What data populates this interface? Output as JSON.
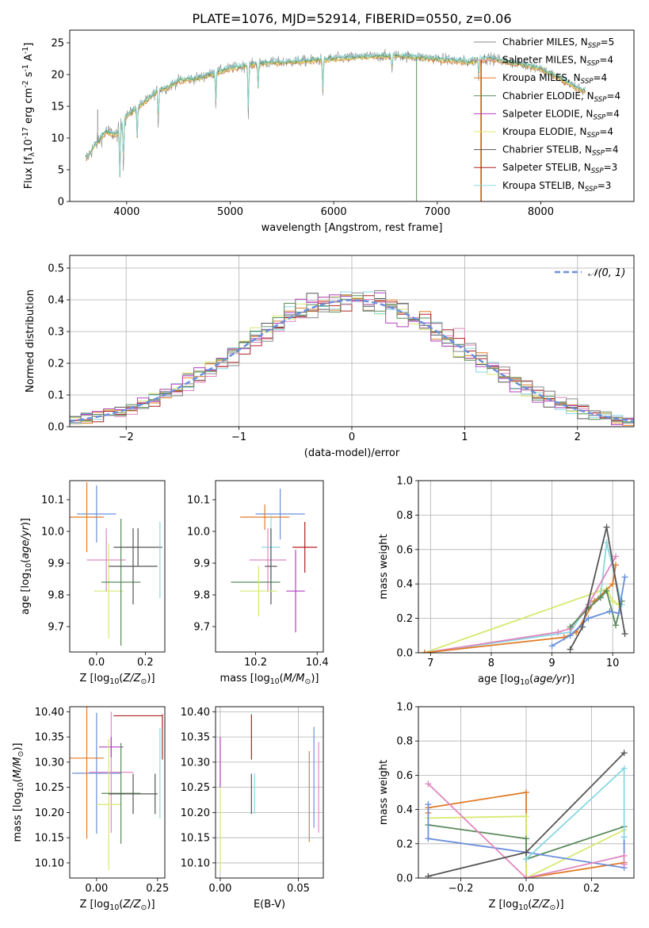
{
  "title": "PLATE=1076, MJD=52914, FIBERID=0550, z=0.06",
  "colors": {
    "c1": "#6a8fdc",
    "c2": "#e087c0",
    "c3": "#e07b28",
    "c4": "#5a8a5a",
    "c5": "#b040c0",
    "c6": "#d8e870",
    "c7": "#555555",
    "c8": "#b02020",
    "c9": "#88d8e0",
    "gray": "#8a8a8a"
  },
  "legend_entries": [
    "Chabrier MILES, N$_{SSP}$=5",
    "Salpeter MILES, N$_{SSP}$=4",
    "Kroupa MILES, N$_{SSP}$=4",
    "Chabrier ELODIE, N$_{SSP}$=4",
    "Salpeter ELODIE, N$_{SSP}$=4",
    "Kroupa ELODIE, N$_{SSP}$=4",
    "Chabrier STELIB, N$_{SSP}$=4",
    "Salpeter STELIB, N$_{SSP}$=3",
    "Kroupa STELIB, N$_{SSP}$=3"
  ],
  "legend_colors": [
    "gray",
    "c2",
    "c3",
    "c4",
    "c5",
    "c6",
    "c7",
    "c8",
    "c9"
  ],
  "chart_data": [
    {
      "id": "spectrum",
      "type": "line",
      "xlabel": "wavelength [Angstrom, rest frame]",
      "ylabel": "Flux [f$_\\lambda$10$^{-17}$ erg cm$^{-2}$ s$^{-1}$ A$^{-1}$]",
      "xlim": [
        3450,
        8900
      ],
      "ylim": [
        0,
        27
      ],
      "xticks": [
        4000,
        5000,
        6000,
        7000,
        8000
      ],
      "yticks": [
        0,
        5,
        10,
        15,
        20,
        25
      ],
      "grid": false,
      "legend": "right",
      "continuum": {
        "x": [
          3600,
          3700,
          3800,
          3900,
          4000,
          4100,
          4200,
          4300,
          4400,
          4500,
          4700,
          5000,
          5300,
          5600,
          6000,
          6300,
          6600,
          7000,
          7300,
          7500,
          8000,
          8400
        ],
        "y": [
          6.5,
          9,
          11,
          10.5,
          13.5,
          14.8,
          16,
          17.5,
          18,
          19,
          19.5,
          21,
          21.8,
          22,
          22.5,
          22.8,
          23,
          22.5,
          22,
          22.6,
          21,
          17.5
        ]
      },
      "dips": [
        {
          "x": 3934,
          "y": 2
        },
        {
          "x": 3969,
          "y": 4
        },
        {
          "x": 4102,
          "y": 9
        },
        {
          "x": 4305,
          "y": 11
        },
        {
          "x": 4861,
          "y": 14
        },
        {
          "x": 5175,
          "y": 12
        },
        {
          "x": 5270,
          "y": 17
        },
        {
          "x": 5895,
          "y": 16
        },
        {
          "x": 6563,
          "y": 20
        },
        {
          "x": 7400,
          "y": 19
        }
      ],
      "spikes": [
        {
          "x": 3720,
          "y": 14.5,
          "color": "gray"
        },
        {
          "x": 6800,
          "y": 0,
          "color": "c4"
        },
        {
          "x": 7425,
          "y": 0,
          "color": "c8"
        },
        {
          "x": 7420,
          "y": 0,
          "color": "c3"
        }
      ]
    },
    {
      "id": "residual_hist",
      "type": "histogram",
      "xlabel": "(data-model)/error",
      "ylabel": "Normed distribution",
      "xlim": [
        -2.5,
        2.5
      ],
      "ylim": [
        0,
        0.54
      ],
      "xticks": [
        -2,
        -1,
        0,
        1,
        2
      ],
      "yticks": [
        0.0,
        0.1,
        0.2,
        0.3,
        0.4,
        0.5
      ],
      "grid": true,
      "bin_width": 0.1,
      "reference": {
        "name": "$\\mathcal{N}(0,1)$",
        "color": "c1",
        "style": "dashed"
      },
      "series_colors": [
        "c7",
        "c3",
        "c2",
        "c6",
        "c9",
        "c8",
        "c5",
        "c4",
        "gray"
      ]
    },
    {
      "id": "age_vs_Z",
      "type": "errorbar",
      "xlabel": "Z [log$_{10}$($Z/Z_\\odot$)]",
      "ylabel": "age  [log$_{10}$($age/yr$)]",
      "xlim": [
        -0.11,
        0.28
      ],
      "ylim": [
        9.62,
        10.16
      ],
      "xticks": [
        0.0,
        0.2
      ],
      "yticks": [
        9.7,
        9.8,
        9.9,
        10.0,
        10.1
      ],
      "grid": false,
      "points": [
        {
          "c": "c1",
          "x": 0.0,
          "y": 10.055,
          "xe": 0.08,
          "ye": 0.09
        },
        {
          "c": "c3",
          "x": -0.04,
          "y": 10.045,
          "xe": 0.07,
          "ye": 0.11
        },
        {
          "c": "c2",
          "x": 0.04,
          "y": 9.91,
          "xe": 0.08,
          "ye": 0.1
        },
        {
          "c": "c6",
          "x": 0.05,
          "y": 9.812,
          "xe": 0.06,
          "ye": 0.15
        },
        {
          "c": "c4",
          "x": 0.1,
          "y": 9.84,
          "xe": 0.08,
          "ye": 0.2
        },
        {
          "c": "c7",
          "x": 0.15,
          "y": 9.89,
          "xe": 0.1,
          "ye": 0.12
        },
        {
          "c": "c5",
          "x": 0.1,
          "y": 9.84,
          "xe": 0.0,
          "ye": 0.0
        },
        {
          "c": "c7",
          "x": 0.17,
          "y": 9.95,
          "xe": 0.1,
          "ye": 0.06
        },
        {
          "c": "c9",
          "x": 0.26,
          "y": 9.91,
          "xe": 0.0,
          "ye": 0.12
        }
      ]
    },
    {
      "id": "age_vs_mass",
      "type": "errorbar",
      "xlabel": "mass [log$_{10}$($M/M_\\odot$)]",
      "ylabel": "",
      "xlim": [
        10.07,
        10.42
      ],
      "ylim": [
        9.62,
        10.16
      ],
      "xticks": [
        10.2,
        10.4
      ],
      "yticks": [
        9.7,
        9.8,
        9.9,
        10.0,
        10.1
      ],
      "grid": false,
      "points": [
        {
          "c": "c1",
          "x": 10.28,
          "y": 10.055,
          "xe": 0.08,
          "ye": 0.08
        },
        {
          "c": "c3",
          "x": 10.23,
          "y": 10.045,
          "xe": 0.08,
          "ye": 0.04
        },
        {
          "c": "c2",
          "x": 10.24,
          "y": 9.91,
          "xe": 0.06,
          "ye": 0.1
        },
        {
          "c": "c9",
          "x": 10.25,
          "y": 9.95,
          "xe": 0.03,
          "ye": 0.1
        },
        {
          "c": "c4",
          "x": 10.2,
          "y": 9.84,
          "xe": 0.08,
          "ye": 0.0
        },
        {
          "c": "c7",
          "x": 10.25,
          "y": 9.89,
          "xe": 0.02,
          "ye": 0.12
        },
        {
          "c": "c6",
          "x": 10.21,
          "y": 9.812,
          "xe": 0.06,
          "ye": 0.08
        },
        {
          "c": "c5",
          "x": 10.33,
          "y": 9.812,
          "xe": 0.03,
          "ye": 0.13
        },
        {
          "c": "c8",
          "x": 10.36,
          "y": 9.95,
          "xe": 0.04,
          "ye": 0.08
        }
      ]
    },
    {
      "id": "weight_vs_age",
      "type": "line",
      "xlabel": "age  [log$_{10}$($age/yr$)]",
      "ylabel": "mass weight",
      "xlim": [
        6.8,
        10.35
      ],
      "ylim": [
        0,
        1.0
      ],
      "xticks": [
        7,
        8,
        9,
        10
      ],
      "yticks": [
        0.0,
        0.2,
        0.4,
        0.6,
        0.8,
        1.0
      ],
      "grid": true,
      "series": [
        {
          "c": "c6",
          "x": [
            6.9,
            9.8,
            9.9,
            10.0,
            10.1
          ],
          "y": [
            0.0,
            0.36,
            0.37,
            0.3,
            0.28
          ]
        },
        {
          "c": "c9",
          "x": [
            6.9,
            9.3,
            9.6,
            9.8,
            9.9,
            10.15
          ],
          "y": [
            0.0,
            0.12,
            0.28,
            0.33,
            0.64,
            0.28
          ]
        },
        {
          "c": "c2",
          "x": [
            6.9,
            9.1,
            9.3,
            9.6,
            10.05
          ],
          "y": [
            0.0,
            0.12,
            0.14,
            0.28,
            0.56
          ]
        },
        {
          "c": "c3",
          "x": [
            6.9,
            9.2,
            9.4,
            9.7,
            10.0,
            10.05
          ],
          "y": [
            0.0,
            0.09,
            0.12,
            0.3,
            0.4,
            0.51
          ]
        },
        {
          "c": "c4",
          "x": [
            9.3,
            9.6,
            9.8,
            9.9,
            10.05,
            10.15
          ],
          "y": [
            0.15,
            0.26,
            0.32,
            0.36,
            0.16,
            0.3
          ]
        },
        {
          "c": "c1",
          "x": [
            9.0,
            9.3,
            9.6,
            9.95,
            10.1,
            10.2
          ],
          "y": [
            0.04,
            0.1,
            0.2,
            0.24,
            0.23,
            0.44
          ]
        },
        {
          "c": "c7",
          "x": [
            9.3,
            9.5,
            9.9,
            10.2
          ],
          "y": [
            0.02,
            0.15,
            0.73,
            0.11
          ]
        }
      ]
    },
    {
      "id": "mass_vs_Z",
      "type": "errorbar",
      "xlabel": "Z [log$_{10}$($Z/Z_\\odot$)]",
      "ylabel": "mass [log$_{10}$($M/M_\\odot$)]",
      "xlim": [
        -0.11,
        0.28
      ],
      "ylim": [
        10.07,
        10.41
      ],
      "xticks": [
        0.0,
        0.25
      ],
      "yticks": [
        10.1,
        10.15,
        10.2,
        10.25,
        10.3,
        10.35,
        10.4
      ],
      "grid": false,
      "points": [
        {
          "c": "c1",
          "x": 0.0,
          "y": 10.278,
          "xe": 0.1,
          "ye": 0.12
        },
        {
          "c": "c3",
          "x": -0.04,
          "y": 10.308,
          "xe": 0.07,
          "ye": 0.16
        },
        {
          "c": "c2",
          "x": 0.06,
          "y": 10.28,
          "xe": 0.09,
          "ye": 0.12
        },
        {
          "c": "c5",
          "x": 0.06,
          "y": 10.33,
          "xe": 0.05,
          "ye": 0.02
        },
        {
          "c": "c6",
          "x": 0.05,
          "y": 10.216,
          "xe": 0.05,
          "ye": 0.13
        },
        {
          "c": "c4",
          "x": 0.1,
          "y": 10.238,
          "xe": 0.08,
          "ye": 0.1
        },
        {
          "c": "c7",
          "x": 0.15,
          "y": 10.237,
          "xe": 0.1,
          "ye": 0.04
        },
        {
          "c": "c8",
          "x": 0.17,
          "y": 10.392,
          "xe": 0.1,
          "ye": 0.0
        },
        {
          "c": "c8",
          "x": 0.27,
          "y": 10.35,
          "xe": 0.0,
          "ye": 0.045
        },
        {
          "c": "c9",
          "x": 0.26,
          "y": 10.278,
          "xe": 0.0,
          "ye": 0.09
        },
        {
          "c": "c7",
          "x": 0.24,
          "y": 10.237,
          "xe": 0.0,
          "ye": 0.04
        }
      ]
    },
    {
      "id": "mass_vs_ebv",
      "type": "errorbar",
      "xlabel": "E(B-V)",
      "ylabel": "",
      "xlim": [
        -0.003,
        0.066
      ],
      "ylim": [
        10.07,
        10.41
      ],
      "xticks": [
        0.0,
        0.05
      ],
      "yticks": [
        10.1,
        10.15,
        10.2,
        10.25,
        10.3,
        10.35,
        10.4
      ],
      "grid": true,
      "points": [
        {
          "c": "c6",
          "x": 0.0,
          "y": 10.216,
          "xe": 0.0,
          "ye": 0.13
        },
        {
          "c": "c5",
          "x": 0.0,
          "y": 10.3,
          "xe": 0.0,
          "ye": 0.05
        },
        {
          "c": "c8",
          "x": 0.02,
          "y": 10.35,
          "xe": 0.0,
          "ye": 0.045
        },
        {
          "c": "c7",
          "x": 0.02,
          "y": 10.237,
          "xe": 0.0,
          "ye": 0.04
        },
        {
          "c": "c9",
          "x": 0.022,
          "y": 10.238,
          "xe": 0.0,
          "ye": 0.04
        },
        {
          "c": "c3",
          "x": 0.057,
          "y": 10.232,
          "xe": 0.0,
          "ye": 0.09
        },
        {
          "c": "c1",
          "x": 0.06,
          "y": 10.27,
          "xe": 0.0,
          "ye": 0.1
        },
        {
          "c": "c2",
          "x": 0.063,
          "y": 10.25,
          "xe": 0.0,
          "ye": 0.09
        }
      ]
    },
    {
      "id": "weight_vs_Z",
      "type": "line",
      "xlabel": "Z [log$_{10}$($Z/Z_\\odot$)]",
      "ylabel": "mass weight",
      "xlim": [
        -0.33,
        0.33
      ],
      "ylim": [
        0,
        1.0
      ],
      "xticks": [
        -0.2,
        0.0,
        0.2
      ],
      "yticks": [
        0.0,
        0.2,
        0.4,
        0.6,
        0.8,
        1.0
      ],
      "grid": true,
      "series": [
        {
          "c": "c3",
          "x": [
            -0.3,
            -0.3,
            0.0,
            0.0,
            0.3
          ],
          "y": [
            0.38,
            0.41,
            0.5,
            0.0,
            0.09
          ]
        },
        {
          "c": "c6",
          "x": [
            -0.3,
            0.0,
            0.0,
            0.3
          ],
          "y": [
            0.35,
            0.36,
            0.0,
            0.28
          ]
        },
        {
          "c": "c4",
          "x": [
            -0.3,
            0.0,
            0.0,
            0.3
          ],
          "y": [
            0.31,
            0.23,
            0.11,
            0.3
          ]
        },
        {
          "c": "c1",
          "x": [
            -0.3,
            -0.3,
            0.0,
            0.3,
            0.3
          ],
          "y": [
            0.43,
            0.23,
            0.15,
            0.06,
            0.24
          ]
        },
        {
          "c": "c2",
          "x": [
            -0.3,
            0.0,
            0.3,
            0.3
          ],
          "y": [
            0.55,
            0.0,
            0.13,
            0.08
          ]
        },
        {
          "c": "c7",
          "x": [
            -0.3,
            0.0,
            0.3
          ],
          "y": [
            0.01,
            0.15,
            0.73
          ]
        },
        {
          "c": "c9",
          "x": [
            0.0,
            0.3,
            0.3
          ],
          "y": [
            0.11,
            0.64,
            0.24
          ]
        }
      ]
    }
  ]
}
